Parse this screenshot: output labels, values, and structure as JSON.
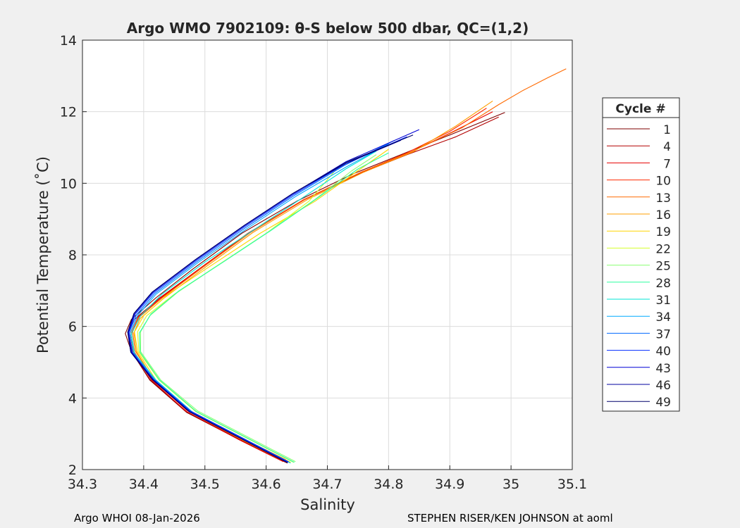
{
  "chart_data": {
    "type": "line",
    "title": "Argo WMO 7902109: θ-S below 500 dbar,  QC=(1,2)",
    "xlabel": "Salinity",
    "ylabel": "Potential Temperature (˚C)",
    "xlim": [
      34.3,
      35.1
    ],
    "ylim": [
      2,
      14
    ],
    "xticks": [
      "34.3",
      "34.4",
      "34.5",
      "34.6",
      "34.7",
      "34.8",
      "34.9",
      "35",
      "35.1"
    ],
    "yticks": [
      "2",
      "4",
      "6",
      "8",
      "10",
      "12",
      "14"
    ],
    "grid": true,
    "legend": {
      "title": "Cycle #",
      "placement": "outside-right"
    },
    "series": [
      {
        "name": "1",
        "color": "#7f0000",
        "top": [
          34.99,
          11.98
        ],
        "points": [
          [
            34.635,
            2.18
          ],
          [
            34.56,
            2.8
          ],
          [
            34.47,
            3.6
          ],
          [
            34.41,
            4.5
          ],
          [
            34.38,
            5.3
          ],
          [
            34.37,
            5.8
          ],
          [
            34.38,
            6.2
          ],
          [
            34.42,
            6.8
          ],
          [
            34.48,
            7.6
          ],
          [
            34.56,
            8.6
          ],
          [
            34.65,
            9.5
          ],
          [
            34.74,
            10.25
          ],
          [
            34.82,
            10.8
          ],
          [
            34.9,
            11.35
          ],
          [
            34.99,
            11.98
          ]
        ]
      },
      {
        "name": "4",
        "color": "#b30000",
        "top": [
          34.98,
          11.85
        ],
        "points": [
          [
            34.632,
            2.2
          ],
          [
            34.56,
            2.82
          ],
          [
            34.47,
            3.62
          ],
          [
            34.41,
            4.52
          ],
          [
            34.38,
            5.3
          ],
          [
            34.375,
            5.8
          ],
          [
            34.385,
            6.2
          ],
          [
            34.425,
            6.78
          ],
          [
            34.49,
            7.6
          ],
          [
            34.57,
            8.6
          ],
          [
            34.66,
            9.52
          ],
          [
            34.75,
            10.25
          ],
          [
            34.83,
            10.8
          ],
          [
            34.91,
            11.3
          ],
          [
            34.98,
            11.85
          ]
        ]
      },
      {
        "name": "7",
        "color": "#e60000",
        "top": [
          34.97,
          12.0
        ],
        "points": [
          [
            34.628,
            2.22
          ],
          [
            34.555,
            2.84
          ],
          [
            34.468,
            3.64
          ],
          [
            34.412,
            4.52
          ],
          [
            34.382,
            5.3
          ],
          [
            34.378,
            5.82
          ],
          [
            34.388,
            6.22
          ],
          [
            34.428,
            6.8
          ],
          [
            34.492,
            7.62
          ],
          [
            34.572,
            8.62
          ],
          [
            34.662,
            9.55
          ],
          [
            34.752,
            10.28
          ],
          [
            34.83,
            10.82
          ],
          [
            34.9,
            11.4
          ],
          [
            34.97,
            12.0
          ]
        ]
      },
      {
        "name": "10",
        "color": "#ff2a00",
        "top": [
          34.96,
          12.1
        ],
        "points": [
          [
            34.63,
            2.25
          ],
          [
            34.557,
            2.86
          ],
          [
            34.47,
            3.66
          ],
          [
            34.414,
            4.52
          ],
          [
            34.384,
            5.3
          ],
          [
            34.38,
            5.82
          ],
          [
            34.39,
            6.22
          ],
          [
            34.43,
            6.8
          ],
          [
            34.494,
            7.62
          ],
          [
            34.574,
            8.62
          ],
          [
            34.664,
            9.55
          ],
          [
            34.754,
            10.3
          ],
          [
            34.83,
            10.85
          ],
          [
            34.9,
            11.45
          ],
          [
            34.96,
            12.1
          ]
        ]
      },
      {
        "name": "13",
        "color": "#ff6a00",
        "top": [
          35.09,
          13.2
        ],
        "points": [
          [
            34.632,
            2.28
          ],
          [
            34.56,
            2.88
          ],
          [
            34.472,
            3.68
          ],
          [
            34.415,
            4.55
          ],
          [
            34.386,
            5.32
          ],
          [
            34.382,
            5.85
          ],
          [
            34.392,
            6.25
          ],
          [
            34.432,
            6.82
          ],
          [
            34.496,
            7.65
          ],
          [
            34.576,
            8.65
          ],
          [
            34.666,
            9.58
          ],
          [
            34.756,
            10.32
          ],
          [
            34.84,
            10.9
          ],
          [
            34.92,
            11.55
          ],
          [
            34.98,
            12.2
          ],
          [
            35.02,
            12.6
          ],
          [
            35.06,
            12.95
          ],
          [
            35.09,
            13.2
          ]
        ]
      },
      {
        "name": "16",
        "color": "#ff9f00",
        "top": [
          34.97,
          12.3
        ],
        "points": [
          [
            34.634,
            2.2
          ],
          [
            34.562,
            2.82
          ],
          [
            34.474,
            3.62
          ],
          [
            34.416,
            4.52
          ],
          [
            34.388,
            5.3
          ],
          [
            34.384,
            5.82
          ],
          [
            34.394,
            6.22
          ],
          [
            34.434,
            6.8
          ],
          [
            34.498,
            7.62
          ],
          [
            34.578,
            8.62
          ],
          [
            34.668,
            9.55
          ],
          [
            34.758,
            10.3
          ],
          [
            34.84,
            10.88
          ],
          [
            34.91,
            11.6
          ],
          [
            34.97,
            12.3
          ]
        ]
      },
      {
        "name": "19",
        "color": "#ffd500",
        "top": [
          34.8,
          10.95
        ],
        "points": [
          [
            34.64,
            2.2
          ],
          [
            34.57,
            2.8
          ],
          [
            34.48,
            3.6
          ],
          [
            34.42,
            4.5
          ],
          [
            34.39,
            5.3
          ],
          [
            34.385,
            5.85
          ],
          [
            34.4,
            6.3
          ],
          [
            34.44,
            6.9
          ],
          [
            34.51,
            7.7
          ],
          [
            34.59,
            8.6
          ],
          [
            34.68,
            9.5
          ],
          [
            34.75,
            10.35
          ],
          [
            34.8,
            10.95
          ]
        ]
      },
      {
        "name": "22",
        "color": "#d4ff2b",
        "top": [
          34.75,
          10.75
        ],
        "points": [
          [
            34.645,
            2.2
          ],
          [
            34.575,
            2.82
          ],
          [
            34.485,
            3.62
          ],
          [
            34.425,
            4.5
          ],
          [
            34.392,
            5.3
          ],
          [
            34.39,
            5.85
          ],
          [
            34.405,
            6.3
          ],
          [
            34.45,
            6.9
          ],
          [
            34.52,
            7.7
          ],
          [
            34.6,
            8.6
          ],
          [
            34.67,
            9.5
          ],
          [
            34.72,
            10.5
          ],
          [
            34.75,
            10.75
          ]
        ]
      },
      {
        "name": "25",
        "color": "#8cff73",
        "top": [
          34.78,
          10.8
        ],
        "points": [
          [
            34.648,
            2.22
          ],
          [
            34.578,
            2.84
          ],
          [
            34.488,
            3.64
          ],
          [
            34.428,
            4.5
          ],
          [
            34.395,
            5.3
          ],
          [
            34.395,
            5.85
          ],
          [
            34.41,
            6.3
          ],
          [
            34.455,
            6.95
          ],
          [
            34.525,
            7.75
          ],
          [
            34.6,
            8.6
          ],
          [
            34.68,
            9.55
          ],
          [
            34.74,
            10.35
          ],
          [
            34.78,
            10.8
          ]
        ]
      },
      {
        "name": "28",
        "color": "#2bff9f",
        "top": [
          34.8,
          10.85
        ],
        "points": [
          [
            34.646,
            2.2
          ],
          [
            34.576,
            2.82
          ],
          [
            34.486,
            3.62
          ],
          [
            34.426,
            4.5
          ],
          [
            34.394,
            5.28
          ],
          [
            34.393,
            5.82
          ],
          [
            34.412,
            6.35
          ],
          [
            34.458,
            7.0
          ],
          [
            34.53,
            7.8
          ],
          [
            34.605,
            8.65
          ],
          [
            34.685,
            9.6
          ],
          [
            34.75,
            10.4
          ],
          [
            34.8,
            10.85
          ]
        ]
      },
      {
        "name": "31",
        "color": "#00e6d5",
        "top": [
          34.78,
          10.9
        ],
        "points": [
          [
            34.64,
            2.18
          ],
          [
            34.57,
            2.8
          ],
          [
            34.48,
            3.6
          ],
          [
            34.42,
            4.5
          ],
          [
            34.385,
            5.25
          ],
          [
            34.38,
            5.8
          ],
          [
            34.395,
            6.3
          ],
          [
            34.43,
            6.9
          ],
          [
            34.5,
            7.8
          ],
          [
            34.58,
            8.7
          ],
          [
            34.66,
            9.6
          ],
          [
            34.73,
            10.4
          ],
          [
            34.78,
            10.9
          ]
        ]
      },
      {
        "name": "34",
        "color": "#00aaff",
        "top": [
          34.8,
          11.1
        ],
        "points": [
          [
            34.638,
            2.2
          ],
          [
            34.568,
            2.82
          ],
          [
            34.478,
            3.62
          ],
          [
            34.418,
            4.52
          ],
          [
            34.383,
            5.28
          ],
          [
            34.378,
            5.82
          ],
          [
            34.39,
            6.3
          ],
          [
            34.42,
            6.9
          ],
          [
            34.49,
            7.8
          ],
          [
            34.57,
            8.75
          ],
          [
            34.65,
            9.65
          ],
          [
            34.73,
            10.45
          ],
          [
            34.8,
            11.1
          ]
        ]
      },
      {
        "name": "37",
        "color": "#006aff",
        "top": [
          34.81,
          11.2
        ],
        "points": [
          [
            34.636,
            2.2
          ],
          [
            34.566,
            2.82
          ],
          [
            34.476,
            3.62
          ],
          [
            34.416,
            4.52
          ],
          [
            34.381,
            5.28
          ],
          [
            34.376,
            5.82
          ],
          [
            34.388,
            6.32
          ],
          [
            34.418,
            6.92
          ],
          [
            34.488,
            7.82
          ],
          [
            34.568,
            8.78
          ],
          [
            34.648,
            9.68
          ],
          [
            34.728,
            10.5
          ],
          [
            34.81,
            11.2
          ]
        ]
      },
      {
        "name": "40",
        "color": "#002aff",
        "top": [
          34.83,
          11.3
        ],
        "points": [
          [
            34.636,
            2.22
          ],
          [
            34.566,
            2.84
          ],
          [
            34.476,
            3.64
          ],
          [
            34.416,
            4.52
          ],
          [
            34.381,
            5.28
          ],
          [
            34.376,
            5.84
          ],
          [
            34.386,
            6.34
          ],
          [
            34.416,
            6.94
          ],
          [
            34.486,
            7.84
          ],
          [
            34.566,
            8.8
          ],
          [
            34.646,
            9.7
          ],
          [
            34.73,
            10.55
          ],
          [
            34.83,
            11.3
          ]
        ]
      },
      {
        "name": "43",
        "color": "#0000d5",
        "top": [
          34.85,
          11.5
        ],
        "points": [
          [
            34.635,
            2.2
          ],
          [
            34.565,
            2.82
          ],
          [
            34.475,
            3.62
          ],
          [
            34.415,
            4.52
          ],
          [
            34.38,
            5.28
          ],
          [
            34.375,
            5.84
          ],
          [
            34.385,
            6.36
          ],
          [
            34.415,
            6.96
          ],
          [
            34.485,
            7.86
          ],
          [
            34.565,
            8.82
          ],
          [
            34.645,
            9.72
          ],
          [
            34.73,
            10.6
          ],
          [
            34.85,
            11.5
          ]
        ]
      },
      {
        "name": "46",
        "color": "#00009f",
        "top": [
          34.82,
          11.2
        ],
        "points": [
          [
            34.634,
            2.2
          ],
          [
            34.564,
            2.82
          ],
          [
            34.474,
            3.62
          ],
          [
            34.414,
            4.52
          ],
          [
            34.379,
            5.28
          ],
          [
            34.374,
            5.84
          ],
          [
            34.384,
            6.36
          ],
          [
            34.414,
            6.96
          ],
          [
            34.484,
            7.86
          ],
          [
            34.564,
            8.82
          ],
          [
            34.644,
            9.72
          ],
          [
            34.73,
            10.55
          ],
          [
            34.82,
            11.2
          ]
        ]
      },
      {
        "name": "49",
        "color": "#00006a",
        "top": [
          34.84,
          11.35
        ],
        "points": [
          [
            34.634,
            2.2
          ],
          [
            34.564,
            2.82
          ],
          [
            34.474,
            3.62
          ],
          [
            34.414,
            4.52
          ],
          [
            34.379,
            5.28
          ],
          [
            34.374,
            5.84
          ],
          [
            34.384,
            6.36
          ],
          [
            34.414,
            6.96
          ],
          [
            34.484,
            7.86
          ],
          [
            34.564,
            8.82
          ],
          [
            34.644,
            9.72
          ],
          [
            34.73,
            10.58
          ],
          [
            34.84,
            11.35
          ]
        ]
      }
    ]
  },
  "footer": {
    "left": "Argo WHOI 08-Jan-2026",
    "right": "STEPHEN RISER/KEN JOHNSON at aoml"
  }
}
